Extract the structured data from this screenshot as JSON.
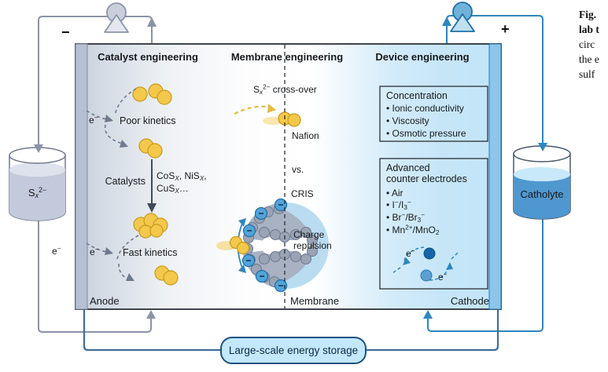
{
  "circuit": {
    "minus": "−",
    "plus": "+",
    "electron_html": "e<sup>−</sup>",
    "storage_label": "Large-scale energy storage"
  },
  "tanks": {
    "anolyte_html": "S<sub><i>x</i></sub><sup>2−</sup>",
    "catholyte": "Catholyte"
  },
  "cell": {
    "catalyst_header": "Catalyst engineering",
    "membrane_header": "Membrane engineering",
    "device_header": "Device engineering",
    "anode": "Anode",
    "membrane": "Membrane",
    "cathode": "Cathode"
  },
  "catalyst_panel": {
    "electron_html": "e<sup>−</sup>",
    "poor_kinetics": "Poor kinetics",
    "fast_kinetics": "Fast kinetics",
    "catalysts_label": "Catalysts",
    "formula_line1_html": "CoS<sub><i>X</i></sub>, NiS<sub><i>X</i></sub>,",
    "formula_line2_html": "CuS<sub><i>X</i></sub>…"
  },
  "membrane_panel": {
    "crossover_html": "S<sub><i>x</i></sub><sup>2−</sup> cross-over",
    "nafion": "Nafion",
    "vs": "vs.",
    "cris": "CRIS",
    "charge_line1": "Charge",
    "charge_line2": "repulsion"
  },
  "device_panel": {
    "concentration_box": {
      "title": "Concentration",
      "bullets": [
        "• Ionic conductivity",
        "• Viscosity",
        "• Osmotic pressure"
      ]
    },
    "electrodes_box": {
      "title_line1": "Advanced",
      "title_line2": "counter electrodes",
      "bullets_html": [
        "• Air",
        "• I<sup>−</sup>/I<sub>3</sub><sup>−</sup>",
        "• Br<sup>−</sup>/Br<sub>3</sub><sup>−</sup>",
        "• Mn<sup>2+</sup>/MnO<sub>2</sub>"
      ]
    }
  },
  "caption": {
    "line1": "Fig.",
    "line2": "lab t",
    "line3": "circ",
    "line4": "the e",
    "line5": "sulf"
  },
  "colors": {
    "anolyte_line": "#8a93a7",
    "catholyte_line": "#2e86bd",
    "energy_line": "#3f6d9b",
    "device_panel_blue": "#c5e5f7",
    "polysulfide_yellow": "#f3c84b",
    "charge_bead_blue": "#53a3d8",
    "storage_fill": "#c3e8fa"
  }
}
